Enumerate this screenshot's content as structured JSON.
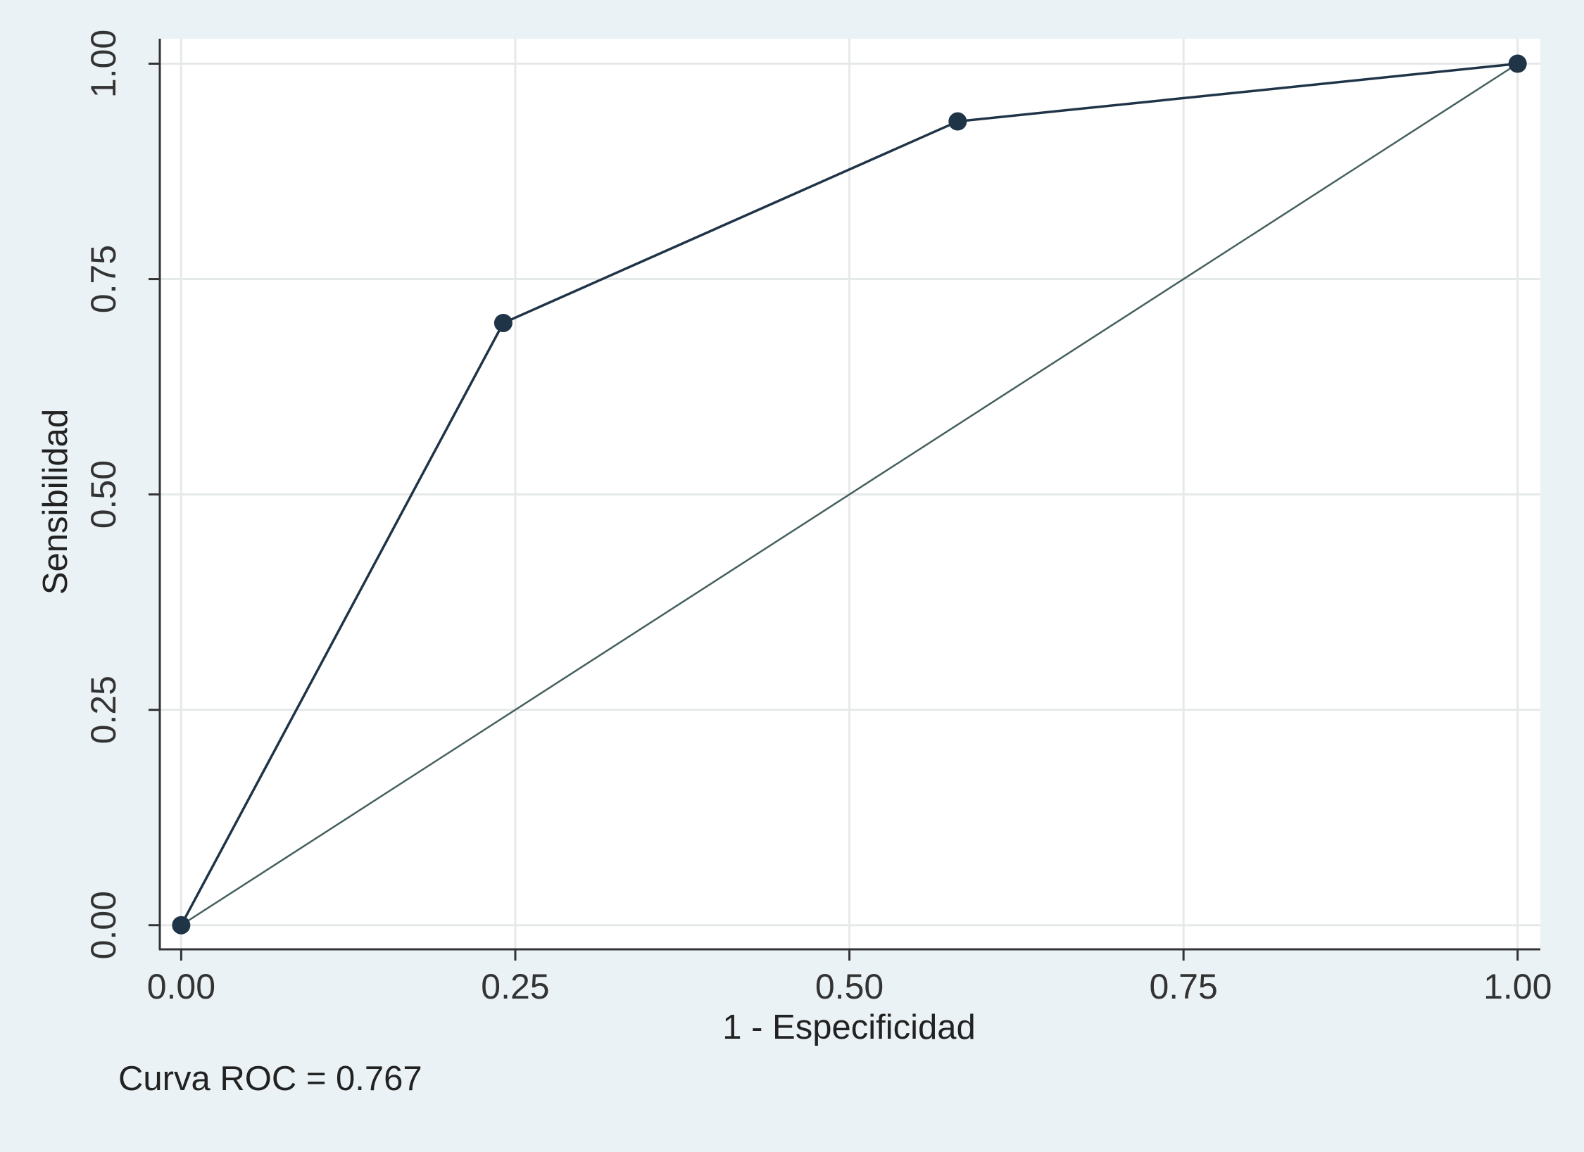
{
  "chart_data": {
    "type": "line",
    "xlabel": "1 - Especificidad",
    "ylabel": "Sensibilidad",
    "annotation": "Curva ROC = 0.767",
    "series": [
      {
        "color": "#1f3447",
        "markers": true,
        "x": [
          0,
          0.241,
          0.581,
          1
        ],
        "values": [
          0,
          0.699,
          0.933,
          1
        ]
      },
      {
        "color": "#45605f",
        "markers": false,
        "x": [
          0,
          1
        ],
        "values": [
          0,
          1
        ]
      }
    ],
    "xlim": [
      -0.016,
      1.017
    ],
    "ylim": [
      -0.028,
      1.029
    ],
    "xticks": [
      {
        "value": 0,
        "label": "0.00"
      },
      {
        "value": 0.25,
        "label": "0.25"
      },
      {
        "value": 0.5,
        "label": "0.50"
      },
      {
        "value": 0.75,
        "label": "0.75"
      },
      {
        "value": 1,
        "label": "1.00"
      }
    ],
    "yticks": [
      {
        "value": 0,
        "label": "0.00"
      },
      {
        "value": 0.25,
        "label": "0.25"
      },
      {
        "value": 0.5,
        "label": "0.50"
      },
      {
        "value": 0.75,
        "label": "0.75"
      },
      {
        "value": 1,
        "label": "1.00"
      }
    ],
    "grid": true
  }
}
